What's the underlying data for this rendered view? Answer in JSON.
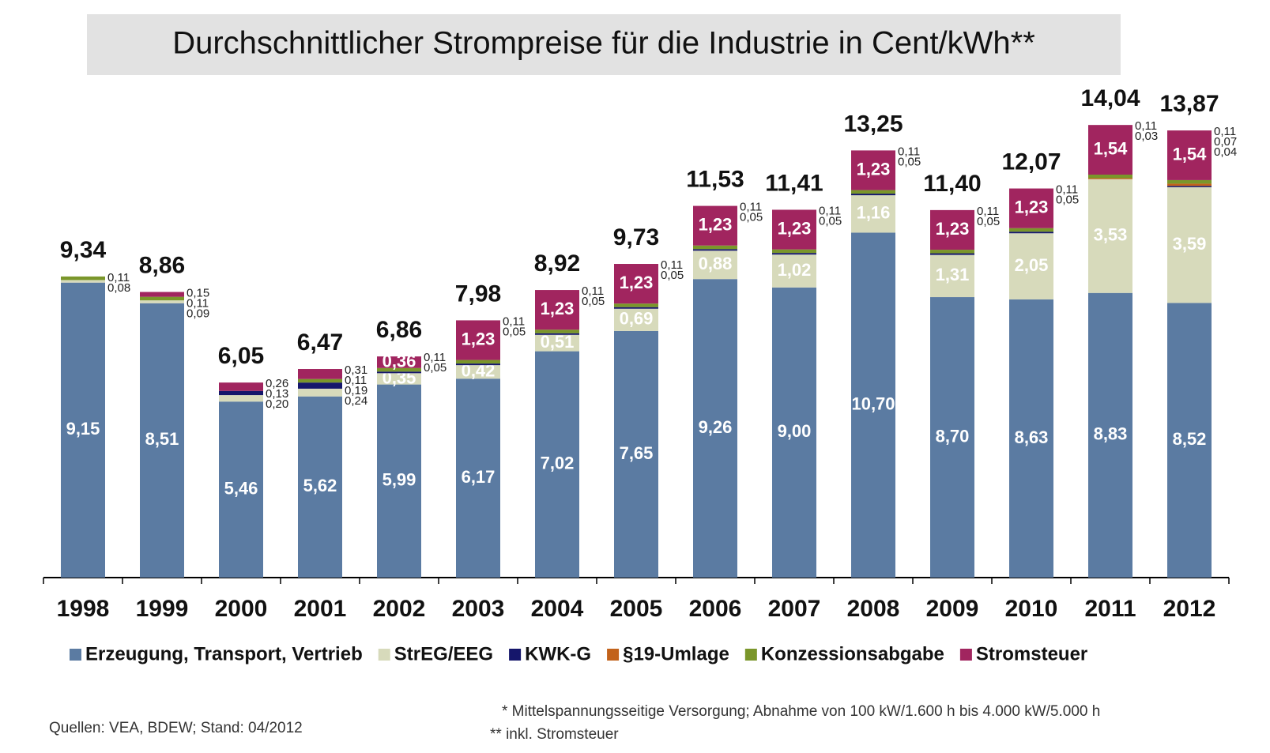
{
  "chart_data": {
    "type": "stacked_bar",
    "title": "Durchschnittlicher Strompreise für die Industrie in Cent/kWh**",
    "categories": [
      "1998",
      "1999",
      "2000",
      "2001",
      "2002",
      "2003",
      "2004",
      "2005",
      "2006",
      "2007",
      "2008",
      "2009",
      "2010",
      "2011",
      "2012"
    ],
    "ylim": [
      0,
      15
    ],
    "series": [
      {
        "name": "Erzeugung, Transport, Vertrieb",
        "color": "#5b7ba2",
        "values": [
          9.15,
          8.51,
          5.46,
          5.62,
          5.99,
          6.17,
          7.02,
          7.65,
          9.26,
          9.0,
          10.7,
          8.7,
          8.63,
          8.83,
          8.52
        ],
        "value_labels": [
          "9,15",
          "8,51",
          "5,46",
          "5,62",
          "5,99",
          "6,17",
          "7,02",
          "7,65",
          "9,26",
          "9,00",
          "10,70",
          "8,70",
          "8,63",
          "8,83",
          "8,52"
        ]
      },
      {
        "name": "StrEG/EEG",
        "color": "#d7dabb",
        "values": [
          0.08,
          0.09,
          0.2,
          0.24,
          0.35,
          0.42,
          0.51,
          0.69,
          0.88,
          1.02,
          1.16,
          1.31,
          2.05,
          3.53,
          3.59
        ],
        "value_labels": [
          "0,08",
          "0,09",
          "0,20",
          "0,24",
          "0,35",
          "0,42",
          "0,51",
          "0,69",
          "0,88",
          "1,02",
          "1,16",
          "1,31",
          "2,05",
          "3,53",
          "3,59"
        ]
      },
      {
        "name": "KWK-G",
        "color": "#15166b",
        "values": [
          null,
          null,
          0.13,
          0.19,
          0.05,
          0.05,
          0.05,
          0.05,
          0.05,
          0.05,
          0.05,
          0.05,
          0.05,
          null,
          0.04
        ],
        "value_labels": [
          null,
          null,
          "0,13",
          "0,19",
          "0,05",
          "0,05",
          "0,05",
          "0,05",
          "0,05",
          "0,05",
          "0,05",
          "0,05",
          "0,05",
          null,
          "0,04"
        ]
      },
      {
        "name": "§19-Umlage",
        "color": "#c2621b",
        "values": [
          null,
          null,
          null,
          null,
          null,
          null,
          null,
          null,
          null,
          null,
          null,
          null,
          null,
          0.03,
          0.07
        ],
        "value_labels": [
          null,
          null,
          null,
          null,
          null,
          null,
          null,
          null,
          null,
          null,
          null,
          null,
          null,
          "0,03",
          "0,07"
        ]
      },
      {
        "name": "Konzessionsabgabe",
        "color": "#7a962a",
        "values": [
          0.11,
          0.11,
          null,
          0.11,
          0.11,
          0.11,
          0.11,
          0.11,
          0.11,
          0.11,
          0.11,
          0.11,
          0.11,
          0.11,
          0.11
        ],
        "value_labels": [
          "0,11",
          "0,11",
          null,
          "0,11",
          "0,11",
          "0,11",
          "0,11",
          "0,11",
          "0,11",
          "0,11",
          "0,11",
          "0,11",
          "0,11",
          "0,11",
          "0,11"
        ]
      },
      {
        "name": "Stromsteuer",
        "color": "#a1255f",
        "values": [
          null,
          0.15,
          0.26,
          0.31,
          0.36,
          1.23,
          1.23,
          1.23,
          1.23,
          1.23,
          1.23,
          1.23,
          1.23,
          1.54,
          1.54
        ],
        "value_labels": [
          null,
          "0,15",
          "0,26",
          "0,31",
          "0,36",
          "1,23",
          "1,23",
          "1,23",
          "1,23",
          "1,23",
          "1,23",
          "1,23",
          "1,23",
          "1,54",
          "1,54"
        ]
      }
    ],
    "totals": [
      9.34,
      8.86,
      6.05,
      6.47,
      6.86,
      7.98,
      8.92,
      9.73,
      11.53,
      11.41,
      13.25,
      11.4,
      12.07,
      14.04,
      13.87
    ],
    "total_labels": [
      "9,34",
      "8,86",
      "6,05",
      "6,47",
      "6,86",
      "7,98",
      "8,92",
      "9,73",
      "11,53",
      "11,41",
      "13,25",
      "11,40",
      "12,07",
      "14,04",
      "13,87"
    ],
    "footnotes": [
      "* Mittelspannungsseitige Versorgung; Abnahme von 100 kW/1.600 h bis 4.000 kW/5.000 h",
      "** inkl. Stromsteuer"
    ],
    "source": "Quellen: VEA, BDEW; Stand: 04/2012"
  }
}
